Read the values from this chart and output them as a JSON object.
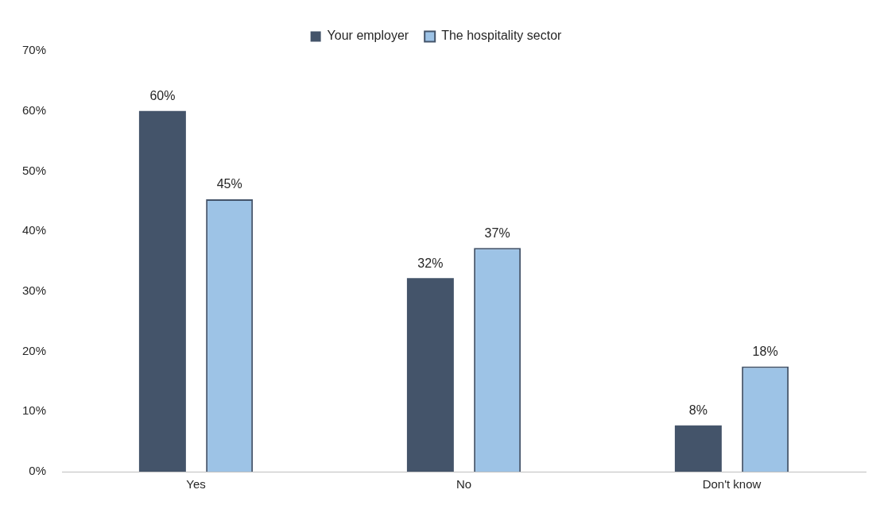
{
  "chart_data": {
    "type": "bar",
    "categories": [
      "Yes",
      "No",
      "Don't know"
    ],
    "series": [
      {
        "name": "Your employer",
        "color": "#44546a",
        "values": [
          60,
          32.2,
          7.7
        ],
        "value_labels": [
          "60%",
          "32%",
          "8%"
        ]
      },
      {
        "name": "The hospitality sector",
        "color": "#9dc3e6",
        "values": [
          45.3,
          37.2,
          17.5
        ],
        "value_labels": [
          "45%",
          "37%",
          "18%"
        ]
      }
    ],
    "ylim": [
      0,
      70
    ],
    "yticks": [
      {
        "value": 0,
        "label": "0%"
      },
      {
        "value": 10,
        "label": "10%"
      },
      {
        "value": 20,
        "label": "20%"
      },
      {
        "value": 30,
        "label": "30%"
      },
      {
        "value": 40,
        "label": "40%"
      },
      {
        "value": 50,
        "label": "50%"
      },
      {
        "value": 60,
        "label": "60%"
      },
      {
        "value": 70,
        "label": "70%"
      }
    ],
    "grid": false,
    "legend": "top"
  }
}
